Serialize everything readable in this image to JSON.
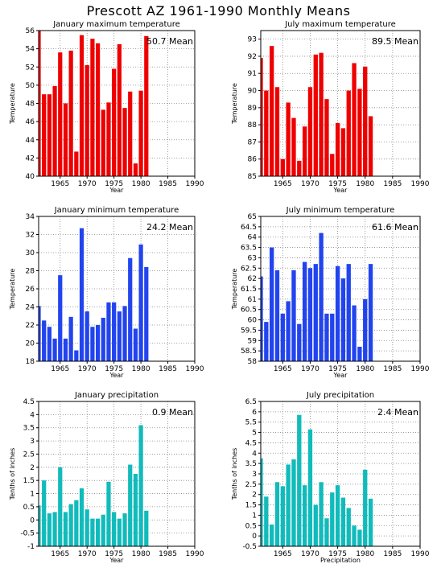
{
  "page": {
    "title": "Prescott AZ  1961-1990 Monthly Means"
  },
  "chart_data": [
    {
      "type": "bar",
      "title": "January maximum temperature",
      "xlabel": "Year",
      "ylabel": "Temperature",
      "mean_label": "50.7 Mean",
      "color": "#ee0000",
      "xlim": [
        1961,
        1990
      ],
      "ylim": [
        40,
        56
      ],
      "yticks": [
        "40",
        "42",
        "44",
        "46",
        "48",
        "50",
        "52",
        "54",
        "56"
      ],
      "xticks": [
        "1965",
        "1970",
        "1975",
        "1980",
        "1985",
        "1990"
      ],
      "x": [
        1961,
        1962,
        1963,
        1964,
        1965,
        1966,
        1967,
        1968,
        1969,
        1970,
        1971,
        1972,
        1973,
        1974,
        1975,
        1976,
        1977,
        1978,
        1979,
        1980,
        1981
      ],
      "values": [
        56.0,
        49.0,
        49.0,
        49.9,
        53.6,
        48.0,
        53.8,
        42.7,
        55.5,
        52.2,
        55.1,
        54.6,
        47.3,
        48.1,
        51.8,
        54.5,
        47.5,
        49.3,
        41.4,
        49.4,
        55.4
      ]
    },
    {
      "type": "bar",
      "title": "July maximum temperature",
      "xlabel": "Year",
      "ylabel": "Temperature",
      "mean_label": "89.5 Mean",
      "color": "#ee0000",
      "xlim": [
        1961,
        1990
      ],
      "ylim": [
        85,
        93.5
      ],
      "yticks": [
        "85",
        "86",
        "87",
        "88",
        "89",
        "90",
        "91",
        "92",
        "93"
      ],
      "xticks": [
        "1965",
        "1970",
        "1975",
        "1980",
        "1985",
        "1990"
      ],
      "x": [
        1961,
        1962,
        1963,
        1964,
        1965,
        1966,
        1967,
        1968,
        1969,
        1970,
        1971,
        1972,
        1973,
        1974,
        1975,
        1976,
        1977,
        1978,
        1979,
        1980,
        1981
      ],
      "values": [
        91.9,
        90.0,
        92.6,
        90.2,
        86.0,
        89.3,
        88.4,
        85.9,
        87.9,
        90.2,
        92.1,
        92.2,
        89.5,
        86.3,
        88.1,
        87.8,
        90.0,
        91.6,
        90.1,
        91.4,
        88.5
      ]
    },
    {
      "type": "bar",
      "title": "January minimum temperature",
      "xlabel": "Year",
      "ylabel": "Temperature",
      "mean_label": "24.2 Mean",
      "color": "#2244ee",
      "xlim": [
        1961,
        1990
      ],
      "ylim": [
        18,
        34
      ],
      "yticks": [
        "18",
        "20",
        "22",
        "24",
        "26",
        "28",
        "30",
        "32",
        "34"
      ],
      "xticks": [
        "1965",
        "1970",
        "1975",
        "1980",
        "1985",
        "1990"
      ],
      "x": [
        1961,
        1962,
        1963,
        1964,
        1965,
        1966,
        1967,
        1968,
        1969,
        1970,
        1971,
        1972,
        1973,
        1974,
        1975,
        1976,
        1977,
        1978,
        1979,
        1980,
        1981
      ],
      "values": [
        24.1,
        22.5,
        21.8,
        20.5,
        27.5,
        20.5,
        22.9,
        19.2,
        32.7,
        23.5,
        21.8,
        22.0,
        22.8,
        24.5,
        24.5,
        23.5,
        24.1,
        29.4,
        21.6,
        30.9,
        28.4
      ]
    },
    {
      "type": "bar",
      "title": "July minimum temperature",
      "xlabel": "Year",
      "ylabel": "Temperature",
      "mean_label": "61.6 Mean",
      "color": "#2244ee",
      "xlim": [
        1961,
        1990
      ],
      "ylim": [
        58,
        65
      ],
      "yticks": [
        "58",
        "58.5",
        "59",
        "59.5",
        "60",
        "60.5",
        "61",
        "61.5",
        "62",
        "62.5",
        "63",
        "63.5",
        "64",
        "64.5",
        "65"
      ],
      "xticks": [
        "1965",
        "1970",
        "1975",
        "1980",
        "1985",
        "1990"
      ],
      "x": [
        1961,
        1962,
        1963,
        1964,
        1965,
        1966,
        1967,
        1968,
        1969,
        1970,
        1971,
        1972,
        1973,
        1974,
        1975,
        1976,
        1977,
        1978,
        1979,
        1980,
        1981
      ],
      "values": [
        62.1,
        59.9,
        63.5,
        62.4,
        60.3,
        60.9,
        62.4,
        59.8,
        62.8,
        62.5,
        62.7,
        64.2,
        60.3,
        60.3,
        62.6,
        62.0,
        62.7,
        60.7,
        58.7,
        61.0,
        62.7
      ]
    },
    {
      "type": "bar",
      "title": "January precipitation",
      "xlabel": "Year",
      "ylabel": "Tenths of inches",
      "mean_label": "0.9 Mean",
      "color": "#11bbbb",
      "xlim": [
        1961,
        1990
      ],
      "ylim": [
        -1,
        4.5
      ],
      "yticks": [
        "-1",
        "-0.5",
        "0",
        "0.5",
        "1",
        "1.5",
        "2",
        "2.5",
        "3",
        "3.5",
        "4",
        "4.5"
      ],
      "xticks": [
        "1965",
        "1970",
        "1975",
        "1980",
        "1985",
        "1990"
      ],
      "x": [
        1961,
        1962,
        1963,
        1964,
        1965,
        1966,
        1967,
        1968,
        1969,
        1970,
        1971,
        1972,
        1973,
        1974,
        1975,
        1976,
        1977,
        1978,
        1979,
        1980,
        1981
      ],
      "values": [
        0.55,
        1.5,
        0.25,
        0.3,
        2.0,
        0.3,
        0.6,
        0.75,
        1.2,
        0.4,
        0.05,
        0.05,
        0.2,
        1.45,
        0.3,
        0.05,
        0.25,
        2.1,
        1.75,
        3.6,
        0.35
      ]
    },
    {
      "type": "bar",
      "title": "July precipitation",
      "xlabel": "Precipitation",
      "ylabel": "Tenths of inches",
      "mean_label": "2.4 Mean",
      "color": "#11bbbb",
      "xlim": [
        1961,
        1990
      ],
      "ylim": [
        -0.5,
        6.5
      ],
      "yticks": [
        "-0.5",
        "0",
        "0.5",
        "1",
        "1.5",
        "2",
        "2.5",
        "3",
        "3.5",
        "4",
        "4.5",
        "5",
        "5.5",
        "6",
        "6.5"
      ],
      "xticks": [
        "1965",
        "1970",
        "1975",
        "1980",
        "1985",
        "1990"
      ],
      "x": [
        1961,
        1962,
        1963,
        1964,
        1965,
        1966,
        1967,
        1968,
        1969,
        1970,
        1971,
        1972,
        1973,
        1974,
        1975,
        1976,
        1977,
        1978,
        1979,
        1980,
        1981
      ],
      "values": [
        3.75,
        1.9,
        0.55,
        2.6,
        2.4,
        3.45,
        3.7,
        5.85,
        2.45,
        5.15,
        1.5,
        2.6,
        0.85,
        2.1,
        2.45,
        1.85,
        1.35,
        0.5,
        0.3,
        3.2,
        1.8
      ]
    }
  ]
}
